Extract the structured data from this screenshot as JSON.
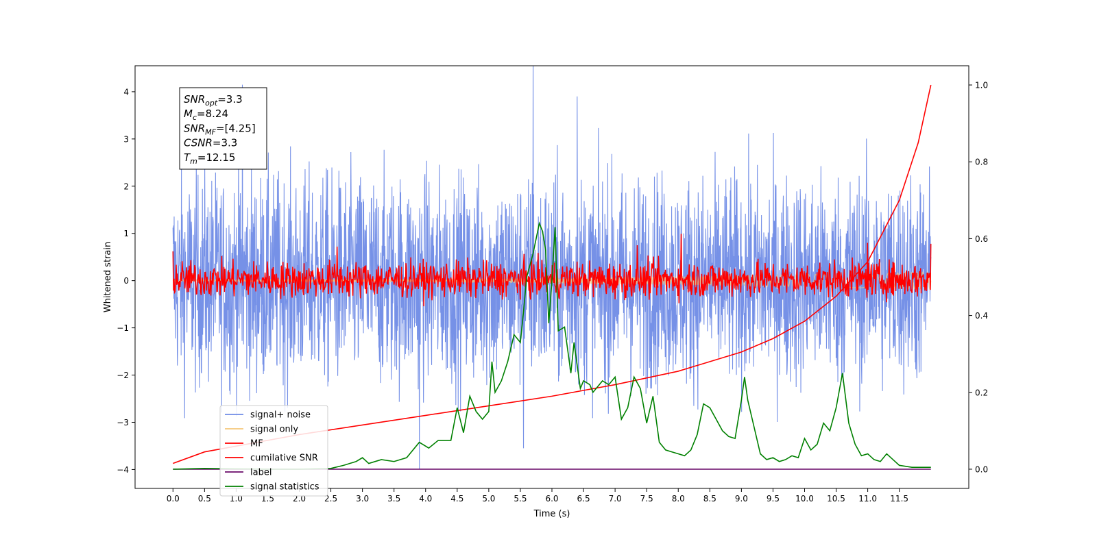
{
  "chart_data": {
    "type": "line",
    "title": "",
    "xlabel": "Time (s)",
    "ylabel": "Whitened strain",
    "y2label": "",
    "xlim": [
      -0.6,
      12.6
    ],
    "ylim": [
      -4.4,
      4.55
    ],
    "y2lim": [
      -0.05,
      1.05
    ],
    "xticks": [
      0.0,
      0.5,
      1.0,
      1.5,
      2.0,
      2.5,
      3.0,
      3.5,
      4.0,
      4.5,
      5.0,
      5.5,
      6.0,
      6.5,
      7.0,
      7.5,
      8.0,
      8.5,
      9.0,
      9.5,
      10.0,
      10.5,
      11.0,
      11.5
    ],
    "xtick_labels": [
      "0.0",
      "0.5",
      "1.0",
      "1.5",
      "2.0",
      "2.5",
      "3.0",
      "3.5",
      "4.0",
      "4.5",
      "5.0",
      "5.5",
      "6.0",
      "6.5",
      "7.0",
      "7.5",
      "8.0",
      "8.5",
      "9.0",
      "9.5",
      "10.0",
      "10.5",
      "11.0",
      "11.5"
    ],
    "yticks": [
      -4,
      -3,
      -2,
      -1,
      0,
      1,
      2,
      3,
      4
    ],
    "ytick_labels": [
      "−4",
      "−3",
      "−2",
      "−1",
      "0",
      "1",
      "2",
      "3",
      "4"
    ],
    "y2ticks": [
      0.0,
      0.2,
      0.4,
      0.6,
      0.8,
      1.0
    ],
    "y2tick_labels": [
      "0.0",
      "0.2",
      "0.4",
      "0.6",
      "0.8",
      "1.0"
    ],
    "grid": false,
    "legend_position": "lower-left",
    "annotation": {
      "lines": [
        {
          "base": "SNR",
          "sub": "opt",
          "rest": "=3.3"
        },
        {
          "base": "M",
          "sub": "c",
          "rest": "=8.24"
        },
        {
          "base": "SNR",
          "sub": "MF",
          "rest": "=[4.25]"
        },
        {
          "base": "CSNR",
          "sub": "",
          "rest": "=3.3"
        },
        {
          "base": "T",
          "sub": "m",
          "rest": "=12.15"
        }
      ]
    },
    "series": [
      {
        "name": "signal+ noise",
        "axis": "left",
        "color": "#6f8be6",
        "kind": "noise_band",
        "x_range": [
          0.0,
          12.0
        ],
        "envelope": [
          -2.2,
          2.2
        ],
        "peaks": [
          [
            1.1,
            4.15
          ],
          [
            5.7,
            4.75
          ],
          [
            6.4,
            3.9
          ],
          [
            3.9,
            -4.0
          ],
          [
            5.55,
            -3.55
          ]
        ]
      },
      {
        "name": "signal only",
        "axis": "left",
        "color": "#f5c77a",
        "kind": "chirp",
        "x_range": [
          0.0,
          12.0
        ],
        "amplitude_start": 0.02,
        "amplitude_end": 0.18
      },
      {
        "name": "MF",
        "axis": "left",
        "color": "#ff0000",
        "kind": "noise_band",
        "x_range": [
          0.0,
          12.0
        ],
        "envelope": [
          -0.35,
          0.4
        ],
        "peaks": [
          [
            0.0,
            0.62
          ],
          [
            2.6,
            0.72
          ],
          [
            7.35,
            0.75
          ],
          [
            8.05,
            0.99
          ],
          [
            11.0,
            0.8
          ],
          [
            12.0,
            0.78
          ]
        ]
      },
      {
        "name": "cumilative SNR",
        "axis": "right",
        "color": "#ff0000",
        "x": [
          0.0,
          0.5,
          1.0,
          2.0,
          3.0,
          4.0,
          5.0,
          6.0,
          7.0,
          8.0,
          9.0,
          9.5,
          10.0,
          10.5,
          11.0,
          11.5,
          11.8,
          12.0
        ],
        "y": [
          0.015,
          0.045,
          0.06,
          0.09,
          0.115,
          0.14,
          0.165,
          0.19,
          0.22,
          0.255,
          0.305,
          0.34,
          0.385,
          0.45,
          0.54,
          0.7,
          0.85,
          1.0
        ]
      },
      {
        "name": "label",
        "axis": "right",
        "color": "#6a0a6a",
        "x": [
          0.0,
          12.0
        ],
        "y": [
          0.0,
          0.0
        ]
      },
      {
        "name": "signal statistics",
        "axis": "right",
        "color": "#008000",
        "x": [
          0.0,
          0.5,
          1.0,
          1.5,
          2.0,
          2.5,
          2.7,
          2.9,
          3.0,
          3.1,
          3.3,
          3.5,
          3.7,
          3.9,
          4.05,
          4.2,
          4.4,
          4.5,
          4.6,
          4.7,
          4.8,
          4.9,
          5.0,
          5.05,
          5.1,
          5.2,
          5.3,
          5.4,
          5.5,
          5.55,
          5.6,
          5.65,
          5.7,
          5.75,
          5.8,
          5.85,
          5.9,
          5.95,
          6.0,
          6.05,
          6.1,
          6.2,
          6.3,
          6.35,
          6.45,
          6.5,
          6.6,
          6.65,
          6.8,
          6.9,
          7.0,
          7.1,
          7.2,
          7.3,
          7.4,
          7.5,
          7.6,
          7.7,
          7.8,
          7.9,
          8.0,
          8.1,
          8.2,
          8.3,
          8.4,
          8.5,
          8.6,
          8.7,
          8.8,
          8.9,
          9.0,
          9.05,
          9.1,
          9.2,
          9.3,
          9.4,
          9.5,
          9.6,
          9.7,
          9.8,
          9.9,
          10.0,
          10.1,
          10.2,
          10.3,
          10.4,
          10.5,
          10.6,
          10.7,
          10.8,
          10.9,
          11.0,
          11.1,
          11.2,
          11.3,
          11.4,
          11.5,
          11.7,
          12.0
        ],
        "y": [
          0.0,
          0.002,
          0.001,
          0.0,
          0.0,
          0.002,
          0.01,
          0.02,
          0.03,
          0.015,
          0.025,
          0.02,
          0.03,
          0.07,
          0.055,
          0.075,
          0.075,
          0.16,
          0.095,
          0.19,
          0.15,
          0.13,
          0.15,
          0.28,
          0.2,
          0.23,
          0.28,
          0.35,
          0.33,
          0.41,
          0.5,
          0.53,
          0.56,
          0.6,
          0.64,
          0.62,
          0.57,
          0.38,
          0.49,
          0.63,
          0.36,
          0.37,
          0.25,
          0.33,
          0.21,
          0.23,
          0.22,
          0.2,
          0.23,
          0.22,
          0.24,
          0.13,
          0.16,
          0.24,
          0.21,
          0.12,
          0.19,
          0.07,
          0.05,
          0.045,
          0.04,
          0.035,
          0.05,
          0.09,
          0.17,
          0.16,
          0.13,
          0.1,
          0.085,
          0.08,
          0.18,
          0.24,
          0.18,
          0.11,
          0.04,
          0.025,
          0.03,
          0.02,
          0.025,
          0.035,
          0.03,
          0.08,
          0.05,
          0.065,
          0.12,
          0.1,
          0.16,
          0.25,
          0.12,
          0.065,
          0.035,
          0.04,
          0.025,
          0.02,
          0.04,
          0.025,
          0.01,
          0.005,
          0.005
        ]
      }
    ]
  }
}
